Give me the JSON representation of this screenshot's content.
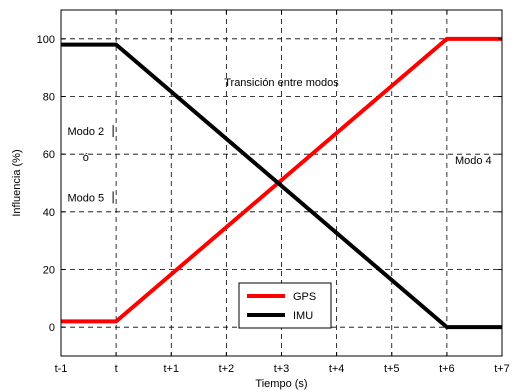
{
  "chart_data": {
    "type": "line",
    "xlabel": "Tiempo (s)",
    "ylabel": "Influencia (%)",
    "xlim": [
      -1,
      7
    ],
    "ylim": [
      -10,
      110
    ],
    "xticks": [
      -1,
      0,
      1,
      2,
      3,
      4,
      5,
      6,
      7
    ],
    "xtick_labels": [
      "t-1",
      "t",
      "t+1",
      "t+2",
      "t+3",
      "t+4",
      "t+5",
      "t+6",
      "t+7"
    ],
    "yticks": [
      0,
      20,
      40,
      60,
      80,
      100
    ],
    "ytick_labels": [
      "0",
      "20",
      "40",
      "60",
      "80",
      "100"
    ],
    "grid": true,
    "grid_style": "dashed",
    "legend_position": "bottom-center",
    "series": [
      {
        "name": "GPS",
        "color": "#ff0000",
        "x": [
          -1,
          0,
          6,
          7
        ],
        "y": [
          2,
          2,
          100,
          100
        ]
      },
      {
        "name": "IMU",
        "color": "#000000",
        "x": [
          -1,
          0,
          6,
          7
        ],
        "y": [
          98,
          98,
          0,
          0
        ]
      }
    ],
    "annotations": [
      {
        "text": "Transición entre modos",
        "x": 3.0,
        "y": 85
      },
      {
        "text": "Modo 2",
        "x": -0.55,
        "y": 68
      },
      {
        "text": "ó",
        "x": -0.55,
        "y": 59
      },
      {
        "text": "Modo 5",
        "x": -0.55,
        "y": 45
      },
      {
        "text": "Modo 4",
        "x": 6.48,
        "y": 58
      }
    ]
  }
}
